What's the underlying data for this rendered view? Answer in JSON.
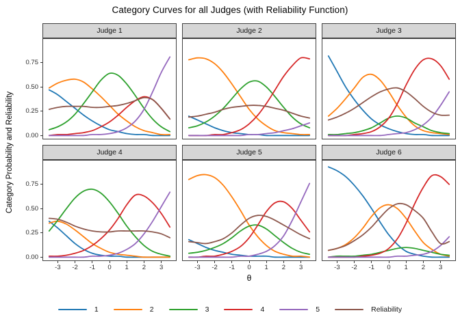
{
  "chart_data": {
    "type": "line",
    "title": "Category Curves for all Judges (with Reliability Function)",
    "xlabel": "θ",
    "ylabel": "Category Probability and Reliability",
    "grid": false,
    "legend_position": "bottom",
    "xlim": [
      -3.5,
      3.5
    ],
    "ylim": [
      0,
      0.95
    ],
    "x_ticks": [
      -3,
      -2,
      -1,
      0,
      1,
      2,
      3
    ],
    "y_ticks": [
      0,
      0.25,
      0.5,
      0.75
    ],
    "y_tick_labels": [
      "0.00",
      "0.25",
      "0.50",
      "0.75"
    ],
    "legend": [
      {
        "label": "1",
        "color": "#1f77b4"
      },
      {
        "label": "2",
        "color": "#ff7f0e"
      },
      {
        "label": "3",
        "color": "#2ca02c"
      },
      {
        "label": "4",
        "color": "#d62728"
      },
      {
        "label": "5",
        "color": "#9467bd"
      },
      {
        "label": "Reliability",
        "color": "#8c564b"
      }
    ],
    "x_grid": [
      -3.5,
      -3,
      -2.5,
      -2,
      -1.5,
      -1,
      -0.5,
      0,
      0.5,
      1,
      1.5,
      2,
      2.5,
      3,
      3.5
    ],
    "facets": [
      {
        "label": "Judge 1",
        "series": {
          "1": [
            0.47,
            0.42,
            0.35,
            0.28,
            0.21,
            0.15,
            0.1,
            0.06,
            0.04,
            0.02,
            0.01,
            0.01,
            0.0,
            0.0,
            0.0
          ],
          "2": [
            0.49,
            0.54,
            0.57,
            0.58,
            0.55,
            0.48,
            0.4,
            0.31,
            0.22,
            0.15,
            0.09,
            0.05,
            0.03,
            0.01,
            0.01
          ],
          "3": [
            0.06,
            0.09,
            0.14,
            0.22,
            0.33,
            0.45,
            0.57,
            0.64,
            0.62,
            0.53,
            0.41,
            0.28,
            0.17,
            0.09,
            0.04
          ],
          "4": [
            0.0,
            0.01,
            0.01,
            0.02,
            0.03,
            0.05,
            0.09,
            0.14,
            0.21,
            0.29,
            0.36,
            0.4,
            0.37,
            0.28,
            0.17
          ],
          "5": [
            0.0,
            0.0,
            0.0,
            0.0,
            0.0,
            0.01,
            0.01,
            0.02,
            0.04,
            0.08,
            0.15,
            0.27,
            0.45,
            0.65,
            0.81
          ],
          "Reliability": [
            0.27,
            0.29,
            0.3,
            0.3,
            0.3,
            0.29,
            0.29,
            0.3,
            0.31,
            0.33,
            0.36,
            0.39,
            0.37,
            0.28,
            0.17
          ]
        }
      },
      {
        "label": "Judge 2",
        "series": {
          "1": [
            0.2,
            0.16,
            0.12,
            0.08,
            0.05,
            0.03,
            0.02,
            0.01,
            0.01,
            0.0,
            0.0,
            0.0,
            0.0,
            0.0,
            0.0
          ],
          "2": [
            0.78,
            0.8,
            0.79,
            0.74,
            0.65,
            0.53,
            0.4,
            0.27,
            0.17,
            0.1,
            0.05,
            0.03,
            0.02,
            0.01,
            0.01
          ],
          "3": [
            0.08,
            0.1,
            0.14,
            0.2,
            0.28,
            0.38,
            0.48,
            0.55,
            0.56,
            0.5,
            0.4,
            0.29,
            0.19,
            0.12,
            0.08
          ],
          "4": [
            0.0,
            0.0,
            0.0,
            0.01,
            0.01,
            0.03,
            0.06,
            0.12,
            0.21,
            0.33,
            0.47,
            0.61,
            0.72,
            0.8,
            0.79
          ],
          "5": [
            0.0,
            0.0,
            0.0,
            0.0,
            0.0,
            0.0,
            0.0,
            0.01,
            0.01,
            0.02,
            0.03,
            0.05,
            0.07,
            0.1,
            0.13
          ],
          "Reliability": [
            0.19,
            0.2,
            0.22,
            0.24,
            0.27,
            0.29,
            0.3,
            0.31,
            0.31,
            0.3,
            0.28,
            0.26,
            0.23,
            0.2,
            0.18
          ]
        }
      },
      {
        "label": "Judge 3",
        "series": {
          "1": [
            0.82,
            0.66,
            0.5,
            0.37,
            0.26,
            0.17,
            0.11,
            0.07,
            0.04,
            0.02,
            0.01,
            0.01,
            0.0,
            0.0,
            0.0
          ],
          "2": [
            0.2,
            0.28,
            0.38,
            0.49,
            0.6,
            0.63,
            0.57,
            0.45,
            0.31,
            0.19,
            0.1,
            0.05,
            0.03,
            0.02,
            0.01
          ],
          "3": [
            0.01,
            0.01,
            0.02,
            0.03,
            0.05,
            0.08,
            0.13,
            0.18,
            0.2,
            0.18,
            0.13,
            0.09,
            0.05,
            0.03,
            0.02
          ],
          "4": [
            0.0,
            0.0,
            0.0,
            0.01,
            0.02,
            0.04,
            0.09,
            0.18,
            0.33,
            0.52,
            0.68,
            0.78,
            0.79,
            0.72,
            0.58
          ],
          "5": [
            0.0,
            0.0,
            0.0,
            0.0,
            0.0,
            0.0,
            0.0,
            0.01,
            0.02,
            0.03,
            0.06,
            0.11,
            0.19,
            0.31,
            0.45
          ],
          "Reliability": [
            0.16,
            0.19,
            0.23,
            0.28,
            0.34,
            0.4,
            0.45,
            0.48,
            0.49,
            0.45,
            0.38,
            0.3,
            0.24,
            0.21,
            0.21
          ]
        }
      },
      {
        "label": "Judge 4",
        "series": {
          "1": [
            0.37,
            0.3,
            0.22,
            0.14,
            0.08,
            0.04,
            0.02,
            0.01,
            0.01,
            0.0,
            0.0,
            0.0,
            0.0,
            0.0,
            0.0
          ],
          "2": [
            0.35,
            0.37,
            0.34,
            0.28,
            0.21,
            0.14,
            0.09,
            0.05,
            0.03,
            0.02,
            0.01,
            0.0,
            0.0,
            0.0,
            0.0
          ],
          "3": [
            0.27,
            0.38,
            0.5,
            0.61,
            0.68,
            0.7,
            0.66,
            0.57,
            0.45,
            0.32,
            0.21,
            0.12,
            0.06,
            0.03,
            0.01
          ],
          "4": [
            0.01,
            0.01,
            0.02,
            0.04,
            0.07,
            0.12,
            0.19,
            0.28,
            0.4,
            0.54,
            0.64,
            0.63,
            0.56,
            0.45,
            0.31
          ],
          "5": [
            0.0,
            0.0,
            0.0,
            0.0,
            0.0,
            0.01,
            0.01,
            0.02,
            0.04,
            0.08,
            0.14,
            0.24,
            0.37,
            0.52,
            0.67
          ],
          "Reliability": [
            0.4,
            0.39,
            0.36,
            0.32,
            0.29,
            0.27,
            0.26,
            0.26,
            0.27,
            0.27,
            0.27,
            0.27,
            0.26,
            0.24,
            0.2
          ]
        }
      },
      {
        "label": "Judge 5",
        "series": {
          "1": [
            0.18,
            0.14,
            0.1,
            0.07,
            0.05,
            0.03,
            0.02,
            0.01,
            0.01,
            0.01,
            0.0,
            0.0,
            0.0,
            0.0,
            0.0
          ],
          "2": [
            0.8,
            0.84,
            0.85,
            0.82,
            0.74,
            0.62,
            0.48,
            0.33,
            0.21,
            0.12,
            0.06,
            0.03,
            0.01,
            0.01,
            0.0
          ],
          "3": [
            0.04,
            0.05,
            0.07,
            0.1,
            0.14,
            0.2,
            0.27,
            0.32,
            0.33,
            0.29,
            0.22,
            0.15,
            0.09,
            0.05,
            0.03
          ],
          "4": [
            0.0,
            0.0,
            0.01,
            0.01,
            0.03,
            0.06,
            0.11,
            0.2,
            0.33,
            0.47,
            0.56,
            0.57,
            0.5,
            0.38,
            0.26
          ],
          "5": [
            0.0,
            0.0,
            0.0,
            0.0,
            0.0,
            0.0,
            0.01,
            0.01,
            0.03,
            0.06,
            0.12,
            0.22,
            0.38,
            0.57,
            0.76
          ],
          "Reliability": [
            0.16,
            0.15,
            0.14,
            0.16,
            0.19,
            0.25,
            0.33,
            0.4,
            0.43,
            0.42,
            0.38,
            0.33,
            0.28,
            0.23,
            0.19
          ]
        }
      },
      {
        "label": "Judge 6",
        "series": {
          "1": [
            0.93,
            0.89,
            0.83,
            0.74,
            0.63,
            0.5,
            0.36,
            0.23,
            0.13,
            0.06,
            0.03,
            0.01,
            0.0,
            0.0,
            0.0
          ],
          "2": [
            0.07,
            0.09,
            0.13,
            0.2,
            0.3,
            0.42,
            0.51,
            0.54,
            0.5,
            0.4,
            0.27,
            0.15,
            0.08,
            0.03,
            0.01
          ],
          "3": [
            0.0,
            0.01,
            0.01,
            0.01,
            0.02,
            0.03,
            0.05,
            0.07,
            0.09,
            0.1,
            0.09,
            0.07,
            0.05,
            0.03,
            0.02
          ],
          "4": [
            0.0,
            0.0,
            0.0,
            0.0,
            0.01,
            0.02,
            0.04,
            0.09,
            0.19,
            0.35,
            0.55,
            0.72,
            0.84,
            0.83,
            0.75
          ],
          "5": [
            0.0,
            0.0,
            0.0,
            0.0,
            0.0,
            0.0,
            0.0,
            0.0,
            0.01,
            0.01,
            0.02,
            0.03,
            0.06,
            0.12,
            0.21
          ],
          "Reliability": [
            0.07,
            0.09,
            0.12,
            0.17,
            0.23,
            0.31,
            0.41,
            0.5,
            0.55,
            0.54,
            0.48,
            0.4,
            0.26,
            0.14,
            0.16
          ]
        }
      }
    ]
  }
}
